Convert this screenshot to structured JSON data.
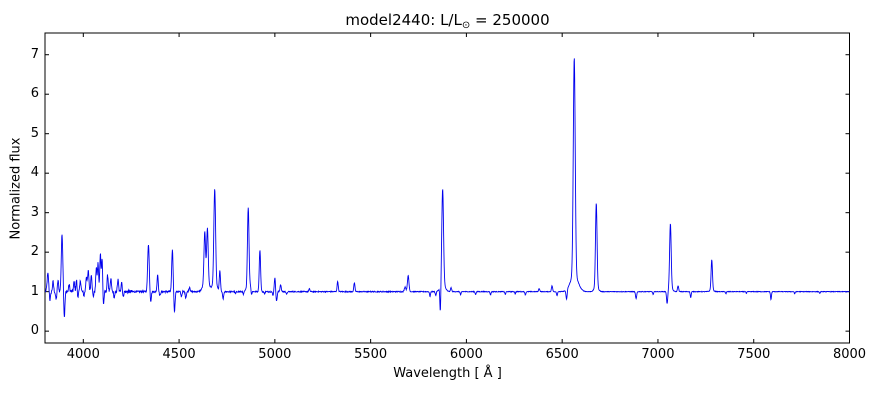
{
  "title": {
    "prefix": "model2440: L/L",
    "sub": "⊙",
    "suffix": " = 250000"
  },
  "chart_data": {
    "type": "line",
    "title": "model2440: L/L⊙ = 250000",
    "xlabel": "Wavelength [ Å ]",
    "ylabel": "Normalized flux",
    "xlim": [
      3800,
      8000
    ],
    "ylim": [
      -0.3,
      7.55
    ],
    "xticks": [
      4000,
      4500,
      5000,
      5500,
      6000,
      6500,
      7000,
      7500,
      8000
    ],
    "yticks": [
      0,
      1,
      2,
      3,
      4,
      5,
      6,
      7
    ],
    "grid": false,
    "legend": "none",
    "line_color": "#0000ee",
    "frame_color": "#000000",
    "background_color": "#ffffff",
    "continuum_flux": 1.0,
    "emission_lines": [
      {
        "wl": 3815,
        "flux": 1.45,
        "sigma": 4
      },
      {
        "wl": 3842,
        "flux": 1.25,
        "sigma": 3
      },
      {
        "wl": 3868,
        "flux": 1.28,
        "sigma": 3
      },
      {
        "wl": 3889,
        "flux": 2.45,
        "sigma": 4
      },
      {
        "wl": 3926,
        "flux": 1.18,
        "sigma": 3
      },
      {
        "wl": 3952,
        "flux": 1.25,
        "sigma": 3
      },
      {
        "wl": 3965,
        "flux": 1.33,
        "sigma": 3
      },
      {
        "wl": 3985,
        "flux": 1.28,
        "sigma": 3
      },
      {
        "wl": 4016,
        "flux": 1.38,
        "sigma": 3
      },
      {
        "wl": 4026,
        "flux": 1.52,
        "sigma": 3.5
      },
      {
        "wl": 4042,
        "flux": 1.45,
        "sigma": 3
      },
      {
        "wl": 4068,
        "flux": 1.62,
        "sigma": 3
      },
      {
        "wl": 4077,
        "flux": 1.72,
        "sigma": 3
      },
      {
        "wl": 4089,
        "flux": 1.97,
        "sigma": 3
      },
      {
        "wl": 4098,
        "flux": 1.85,
        "sigma": 3
      },
      {
        "wl": 4127,
        "flux": 1.42,
        "sigma": 3
      },
      {
        "wl": 4144,
        "flux": 1.32,
        "sigma": 3
      },
      {
        "wl": 4181,
        "flux": 1.3,
        "sigma": 3
      },
      {
        "wl": 4200,
        "flux": 1.25,
        "sigma": 3
      },
      {
        "wl": 4340,
        "flux": 2.21,
        "sigma": 4
      },
      {
        "wl": 4388,
        "flux": 1.44,
        "sigma": 3
      },
      {
        "wl": 4465,
        "flux": 2.06,
        "sigma": 3.5
      },
      {
        "wl": 4555,
        "flux": 1.12,
        "sigma": 3
      },
      {
        "wl": 4634,
        "flux": 2.42,
        "sigma": 4,
        "wing_frac": 0.12,
        "wing_sigma": 12
      },
      {
        "wl": 4648,
        "flux": 2.52,
        "sigma": 4,
        "wing_frac": 0.12,
        "wing_sigma": 12
      },
      {
        "wl": 4686,
        "flux": 3.6,
        "sigma": 4.5,
        "wing_frac": 0.08,
        "wing_sigma": 12
      },
      {
        "wl": 4713,
        "flux": 1.52,
        "sigma": 3
      },
      {
        "wl": 4861,
        "flux": 3.14,
        "sigma": 4,
        "wing_frac": 0.05,
        "wing_sigma": 10
      },
      {
        "wl": 4872,
        "flux": 1.1,
        "sigma": 3
      },
      {
        "wl": 4922,
        "flux": 2.06,
        "sigma": 3.5
      },
      {
        "wl": 5000,
        "flux": 1.35,
        "sigma": 3
      },
      {
        "wl": 5030,
        "flux": 1.18,
        "sigma": 3
      },
      {
        "wl": 5180,
        "flux": 1.07,
        "sigma": 3
      },
      {
        "wl": 5328,
        "flux": 1.26,
        "sigma": 3
      },
      {
        "wl": 5415,
        "flux": 1.22,
        "sigma": 3
      },
      {
        "wl": 5680,
        "flux": 1.12,
        "sigma": 4
      },
      {
        "wl": 5696,
        "flux": 1.4,
        "sigma": 4
      },
      {
        "wl": 5876,
        "flux": 3.6,
        "sigma": 4.5,
        "wing_frac": 0.08,
        "wing_sigma": 12
      },
      {
        "wl": 5920,
        "flux": 1.1,
        "sigma": 3
      },
      {
        "wl": 6380,
        "flux": 1.08,
        "sigma": 3
      },
      {
        "wl": 6447,
        "flux": 1.15,
        "sigma": 3
      },
      {
        "wl": 6563,
        "flux": 6.93,
        "sigma": 5,
        "wing_frac": 0.07,
        "wing_sigma": 20
      },
      {
        "wl": 6678,
        "flux": 3.25,
        "sigma": 4,
        "wing_frac": 0.06,
        "wing_sigma": 10
      },
      {
        "wl": 7065,
        "flux": 2.73,
        "sigma": 4,
        "wing_frac": 0.06,
        "wing_sigma": 10
      },
      {
        "wl": 7105,
        "flux": 1.15,
        "sigma": 3
      },
      {
        "wl": 7281,
        "flux": 1.81,
        "sigma": 3.5,
        "wing_frac": 0.05,
        "wing_sigma": 10
      }
    ],
    "absorption_lines": [
      {
        "wl": 3826,
        "flux": 0.78,
        "sigma": 3
      },
      {
        "wl": 3858,
        "flux": 0.8,
        "sigma": 3
      },
      {
        "wl": 3901,
        "flux": 0.35,
        "sigma": 3
      },
      {
        "wl": 3970,
        "flux": 0.82,
        "sigma": 3
      },
      {
        "wl": 4003,
        "flux": 0.9,
        "sigma": 2.5
      },
      {
        "wl": 4052,
        "flux": 0.88,
        "sigma": 2.5
      },
      {
        "wl": 4105,
        "flux": 0.65,
        "sigma": 3
      },
      {
        "wl": 4162,
        "flux": 0.85,
        "sigma": 3
      },
      {
        "wl": 4208,
        "flux": 0.86,
        "sigma": 2.5
      },
      {
        "wl": 4352,
        "flux": 0.75,
        "sigma": 3
      },
      {
        "wl": 4400,
        "flux": 0.9,
        "sigma": 3
      },
      {
        "wl": 4476,
        "flux": 0.5,
        "sigma": 3
      },
      {
        "wl": 4512,
        "flux": 0.88,
        "sigma": 3
      },
      {
        "wl": 4535,
        "flux": 0.85,
        "sigma": 3
      },
      {
        "wl": 4730,
        "flux": 0.82,
        "sigma": 3
      },
      {
        "wl": 4795,
        "flux": 0.95,
        "sigma": 2.5
      },
      {
        "wl": 4836,
        "flux": 0.92,
        "sigma": 2.5
      },
      {
        "wl": 4878,
        "flux": 0.9,
        "sigma": 2.5
      },
      {
        "wl": 4946,
        "flux": 0.95,
        "sigma": 2.5
      },
      {
        "wl": 4990,
        "flux": 0.9,
        "sigma": 2.5
      },
      {
        "wl": 5009,
        "flux": 0.76,
        "sigma": 3
      },
      {
        "wl": 5062,
        "flux": 0.93,
        "sigma": 2.5
      },
      {
        "wl": 5810,
        "flux": 0.88,
        "sigma": 2.5
      },
      {
        "wl": 5840,
        "flux": 0.9,
        "sigma": 2.5
      },
      {
        "wl": 5864,
        "flux": 0.32,
        "sigma": 2.5
      },
      {
        "wl": 5970,
        "flux": 0.92,
        "sigma": 2.5
      },
      {
        "wl": 6048,
        "flux": 0.93,
        "sigma": 2.5
      },
      {
        "wl": 6126,
        "flux": 0.92,
        "sigma": 2.5
      },
      {
        "wl": 6203,
        "flux": 0.93,
        "sigma": 2.5
      },
      {
        "wl": 6255,
        "flux": 0.94,
        "sigma": 2
      },
      {
        "wl": 6308,
        "flux": 0.92,
        "sigma": 2.5
      },
      {
        "wl": 6473,
        "flux": 0.9,
        "sigma": 2.5
      },
      {
        "wl": 6523,
        "flux": 0.75,
        "sigma": 3
      },
      {
        "wl": 6886,
        "flux": 0.82,
        "sigma": 3
      },
      {
        "wl": 6975,
        "flux": 0.93,
        "sigma": 2.5
      },
      {
        "wl": 7048,
        "flux": 0.67,
        "sigma": 3
      },
      {
        "wl": 7171,
        "flux": 0.85,
        "sigma": 2.5
      },
      {
        "wl": 7355,
        "flux": 0.94,
        "sigma": 2
      },
      {
        "wl": 7462,
        "flux": 0.95,
        "sigma": 2
      },
      {
        "wl": 7590,
        "flux": 0.8,
        "sigma": 2.5
      },
      {
        "wl": 7714,
        "flux": 0.94,
        "sigma": 2
      },
      {
        "wl": 7845,
        "flux": 0.95,
        "sigma": 2
      }
    ],
    "noise_segments": [
      {
        "from": 3800,
        "to": 4260,
        "amp": 0.042
      },
      {
        "from": 4260,
        "to": 4330,
        "amp": 0.02
      },
      {
        "from": 4330,
        "to": 4560,
        "amp": 0.025
      },
      {
        "from": 4560,
        "to": 5060,
        "amp": 0.015
      },
      {
        "from": 5060,
        "to": 5700,
        "amp": 0.012
      },
      {
        "from": 5700,
        "to": 6350,
        "amp": 0.009
      },
      {
        "from": 6350,
        "to": 8000,
        "amp": 0.007
      }
    ],
    "noise_seed": 12345
  }
}
